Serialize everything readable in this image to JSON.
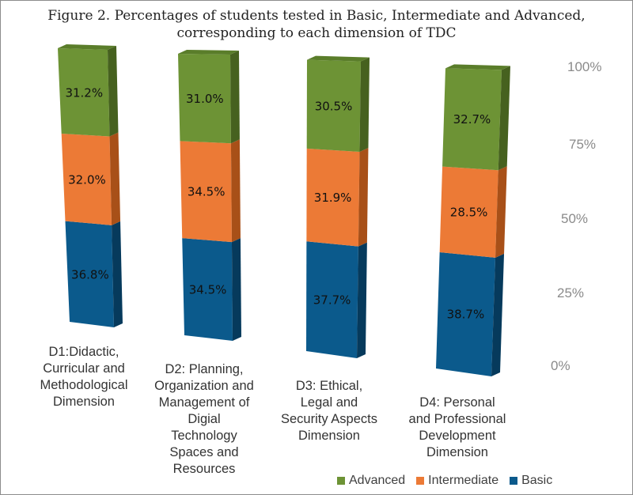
{
  "chart_data": {
    "type": "bar",
    "stacked": true,
    "three_d": true,
    "title": "Figure 2. Percentages of students tested in Basic, Intermediate and Advanced, corresponding to each dimension of TDC",
    "title_lines": [
      "Figure 2. Percentages of students tested in Basic, Intermediate and Advanced,",
      "corresponding to each dimension of TDC"
    ],
    "categories": [
      [
        "D1:Didactic,",
        "Curricular and",
        "Methodological",
        "Dimension"
      ],
      [
        "D2: Planning,",
        "Organization and",
        "Management of",
        "Digial",
        "Technology",
        "Spaces and",
        "Resources"
      ],
      [
        "D3: Ethical,",
        "Legal and",
        "Security Aspects",
        "Dimension"
      ],
      [
        "D4: Personal",
        "and Professional",
        "Development",
        "Dimension"
      ]
    ],
    "series": [
      {
        "name": "Basic",
        "color": "#0b5a8c",
        "side": "#063a5c",
        "values": [
          36.8,
          34.5,
          37.7,
          38.7
        ],
        "labels": [
          "36.8%",
          "34.5%",
          "37.7%",
          "38.7%"
        ]
      },
      {
        "name": "Intermediate",
        "color": "#ec7a36",
        "side": "#a85018",
        "values": [
          32.0,
          34.5,
          31.9,
          28.5
        ],
        "labels": [
          "32.0%",
          "34.5%",
          "31.9%",
          "28.5%"
        ]
      },
      {
        "name": "Advanced",
        "color": "#6d9335",
        "side": "#46611f",
        "values": [
          31.2,
          31.0,
          30.5,
          32.7
        ],
        "labels": [
          "31.2%",
          "31.0%",
          "30.5%",
          "32.7%"
        ]
      }
    ],
    "yticks": [
      "100%",
      "75%",
      "50%",
      "25%",
      "0%"
    ],
    "ylim": [
      0,
      100
    ],
    "legend": [
      "Advanced",
      "Intermediate",
      "Basic"
    ],
    "legend_position": "bottom-right"
  }
}
